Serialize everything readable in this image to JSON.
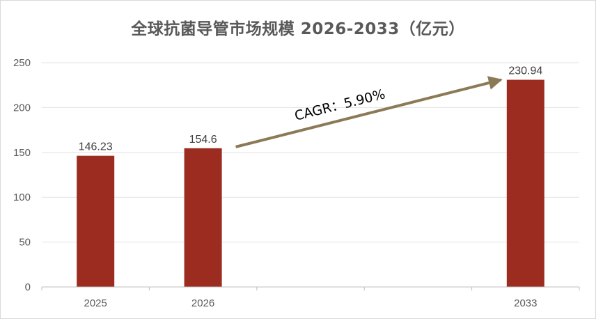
{
  "chart_data": {
    "type": "bar",
    "title": "全球抗菌导管市场规模 2026-2033（亿元）",
    "categories": [
      "2025",
      "2026",
      "",
      "",
      "2033"
    ],
    "values": [
      146.23,
      154.6,
      null,
      null,
      230.94
    ],
    "data_labels": [
      "146.23",
      "154.6",
      "",
      "",
      "230.94"
    ],
    "ylim": [
      0,
      250
    ],
    "yticks": [
      0,
      50,
      100,
      150,
      200,
      250
    ],
    "grid": true,
    "bar_color": "#9b2c1f",
    "annotation": {
      "text": "CAGR：5.90%",
      "from_category_index": 1,
      "to_category_index": 4,
      "arrow_color": "#8b7a55"
    }
  }
}
